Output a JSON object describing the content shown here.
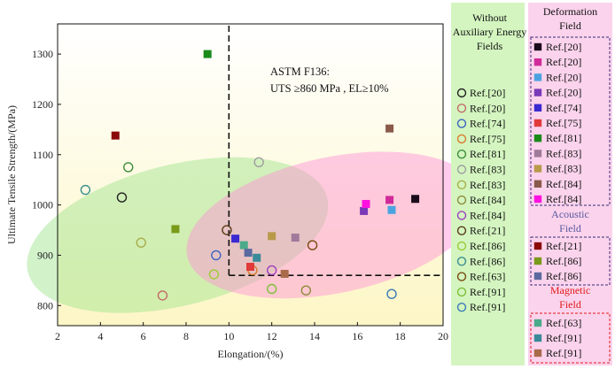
{
  "chart_data": {
    "type": "scatter",
    "title": "",
    "xlabel": "Elongation/(%)",
    "ylabel": "Ultimate Tensile Strength/(MPa)",
    "xlim": [
      2,
      20
    ],
    "ylim": [
      760,
      1360
    ],
    "xticks": [
      2,
      4,
      6,
      8,
      10,
      12,
      14,
      16,
      18,
      20
    ],
    "yticks": [
      800,
      900,
      1000,
      1100,
      1200,
      1300
    ],
    "grid": false,
    "annotation_lines": [
      "ASTM F136:",
      "UTS ≥860 MPa , EL≥10%"
    ],
    "threshold": {
      "x": 10,
      "y": 860
    },
    "regions": [
      {
        "cx": 7.6,
        "cy": 940,
        "rx": 7.2,
        "ry": 140,
        "rotate": -14,
        "color": "#9be38a",
        "opacity": 0.45
      },
      {
        "cx": 14.9,
        "cy": 960,
        "rx": 7.0,
        "ry": 135,
        "rotate": -12,
        "color": "#ff8ed8",
        "opacity": 0.45
      }
    ],
    "background_gradient": [
      "#ffffff",
      "#fdf6c6"
    ],
    "groups": [
      {
        "name": "Without Auxiliary Energy Fields",
        "title_color": "#111111",
        "marker": "circle",
        "series": [
          {
            "name": "Ref.[20]",
            "color": "#222222",
            "points": [
              [
                5.0,
                1015
              ]
            ]
          },
          {
            "name": "Ref.[20]",
            "color": "#c46a6a",
            "points": [
              [
                6.9,
                820
              ]
            ]
          },
          {
            "name": "Ref.[74]",
            "color": "#3c63c0",
            "points": [
              [
                9.4,
                900
              ]
            ]
          },
          {
            "name": "Ref.[75]",
            "color": "#d97b2e",
            "points": [
              [
                11.1,
                870
              ]
            ]
          },
          {
            "name": "Ref.[81]",
            "color": "#3a8e3a",
            "points": [
              [
                5.3,
                1075
              ]
            ]
          },
          {
            "name": "Ref.[83]",
            "color": "#9e9e9e",
            "points": [
              [
                11.4,
                1085
              ]
            ]
          },
          {
            "name": "Ref.[83]",
            "color": "#a8ad4a",
            "points": [
              [
                5.9,
                925
              ]
            ]
          },
          {
            "name": "Ref.[84]",
            "color": "#8c8c3a",
            "points": [
              [
                13.6,
                830
              ]
            ]
          },
          {
            "name": "Ref.[84]",
            "color": "#a040c0",
            "points": [
              [
                12.0,
                870
              ]
            ]
          },
          {
            "name": "Ref.[21]",
            "color": "#5a3a18",
            "points": [
              [
                9.9,
                950
              ]
            ]
          },
          {
            "name": "Ref.[86]",
            "color": "#9bcc3a",
            "points": [
              [
                9.3,
                862
              ]
            ]
          },
          {
            "name": "Ref.[86]",
            "color": "#3a8e8e",
            "points": [
              [
                3.3,
                1030
              ]
            ]
          },
          {
            "name": "Ref.[63]",
            "color": "#7a4a10",
            "points": [
              [
                13.9,
                920
              ]
            ]
          },
          {
            "name": "Ref.[91]",
            "color": "#7fbf3a",
            "points": [
              [
                12.0,
                833
              ]
            ]
          },
          {
            "name": "Ref.[91]",
            "color": "#3a7ab8",
            "points": [
              [
                17.6,
                823
              ]
            ]
          }
        ]
      },
      {
        "name": "Deformation Field",
        "title_color": "#111111",
        "marker": "square",
        "series": [
          {
            "name": "Ref.[20]",
            "color": "#1a0a1a",
            "points": [
              [
                18.7,
                1012
              ]
            ]
          },
          {
            "name": "Ref.[20]",
            "color": "#d02a9a",
            "points": [
              [
                17.5,
                1010
              ]
            ]
          },
          {
            "name": "Ref.[20]",
            "color": "#4aa3e0",
            "points": [
              [
                17.6,
                990
              ]
            ]
          },
          {
            "name": "Ref.[20]",
            "color": "#7a3ab8",
            "points": [
              [
                16.3,
                988
              ]
            ]
          },
          {
            "name": "Ref.[74]",
            "color": "#3a2ad0",
            "points": [
              [
                10.3,
                933
              ]
            ]
          },
          {
            "name": "Ref.[75]",
            "color": "#e03a3a",
            "points": [
              [
                11.0,
                877
              ]
            ]
          },
          {
            "name": "Ref.[81]",
            "color": "#1a8a1a",
            "points": [
              [
                9.0,
                1300
              ]
            ]
          },
          {
            "name": "Ref.[83]",
            "color": "#a07a9a",
            "points": [
              [
                13.1,
                935
              ]
            ]
          },
          {
            "name": "Ref.[83]",
            "color": "#b89a4a",
            "points": [
              [
                12.0,
                938
              ]
            ]
          },
          {
            "name": "Ref.[84]",
            "color": "#8a5a4a",
            "points": [
              [
                17.5,
                1152
              ]
            ]
          },
          {
            "name": "Ref.[84]",
            "color": "#ff10e0",
            "points": [
              [
                16.4,
                1002
              ]
            ]
          }
        ]
      },
      {
        "name": "Acoustic Field",
        "title_color": "#5a5aa0",
        "marker": "square",
        "series": [
          {
            "name": "Ref.[21]",
            "color": "#8a0a0a",
            "points": [
              [
                4.7,
                1138
              ]
            ]
          },
          {
            "name": "Ref.[86]",
            "color": "#7a9a1a",
            "points": [
              [
                7.5,
                952
              ]
            ]
          },
          {
            "name": "Ref.[86]",
            "color": "#5a6aa0",
            "points": [
              [
                10.9,
                905
              ]
            ]
          }
        ]
      },
      {
        "name": "Magnetic Field",
        "title_color": "#e01a1a",
        "marker": "square",
        "series": [
          {
            "name": "Ref.[63]",
            "color": "#4aaa8a",
            "points": [
              [
                10.7,
                920
              ]
            ]
          },
          {
            "name": "Ref.[91]",
            "color": "#3a8a9a",
            "points": [
              [
                11.3,
                895
              ]
            ]
          },
          {
            "name": "Ref.[91]",
            "color": "#a86a4a",
            "points": [
              [
                12.6,
                863
              ]
            ]
          }
        ]
      }
    ]
  }
}
